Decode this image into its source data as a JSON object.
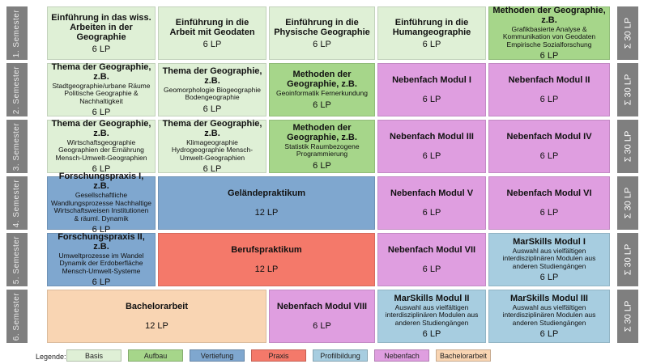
{
  "semesters": [
    "1. Semester",
    "2. Semester",
    "3. Semester",
    "4. Semester",
    "5. Semester",
    "6. Semester"
  ],
  "total_label": "Σ 30 LP",
  "cells": {
    "r1c1": {
      "title": "Einführung in das wiss. Arbeiten in der Geographie",
      "sub": "",
      "lp": "6 LP"
    },
    "r1c2": {
      "title": "Einführung in die Arbeit mit Geodaten",
      "sub": "",
      "lp": "6 LP"
    },
    "r1c3": {
      "title": "Einführung in die Physische Geographie",
      "sub": "",
      "lp": "6 LP"
    },
    "r1c4": {
      "title": "Einführung in die Humangeographie",
      "sub": "",
      "lp": "6 LP"
    },
    "r1c5": {
      "title": "Methoden der Geographie, z.B.",
      "sub": "Grafikbasierte Analyse & Kommunikation von Geodaten Empirische Sozialforschung",
      "lp": "6 LP"
    },
    "r2c1": {
      "title": "Thema der Geographie, z.B.",
      "sub": "Stadtgeographie/urbane Räume Politische Geographie & Nachhaltigkeit",
      "lp": "6 LP"
    },
    "r2c2": {
      "title": "Thema der Geographie, z.B.",
      "sub": "Geomorphologie Biogeographie Bodengeographie",
      "lp": "6 LP"
    },
    "r2c3": {
      "title": "Methoden der Geographie, z.B.",
      "sub": "Geoinformatik Fernerkundung",
      "lp": "6 LP"
    },
    "r2c4": {
      "title": "Nebenfach Modul I",
      "sub": "",
      "lp": "6 LP"
    },
    "r2c5": {
      "title": "Nebenfach Modul II",
      "sub": "",
      "lp": "6 LP"
    },
    "r3c1": {
      "title": "Thema der Geographie, z.B.",
      "sub": "Wirtschaftsgeographie Geographien der Ernährung Mensch-Umwelt-Geographien",
      "lp": "6 LP"
    },
    "r3c2": {
      "title": "Thema der Geographie, z.B.",
      "sub": "Klimageographie Hydrogeographie Mensch-Umwelt-Geographien",
      "lp": "6 LP"
    },
    "r3c3": {
      "title": "Methoden der Geographie, z.B.",
      "sub": "Statistik Raumbezogene Programmierung",
      "lp": "6 LP"
    },
    "r3c4": {
      "title": "Nebenfach Modul III",
      "sub": "",
      "lp": "6 LP"
    },
    "r3c5": {
      "title": "Nebenfach Modul IV",
      "sub": "",
      "lp": "6 LP"
    },
    "r4c1": {
      "title": "Forschungspraxis I, z.B.",
      "sub": "Gesellschaftliche Wandlungsprozesse Nachhaltige Wirtschaftsweisen Institutionen & räuml. Dynamik",
      "lp": "6 LP"
    },
    "r4c2": {
      "title": "Geländepraktikum",
      "sub": "",
      "lp": "12 LP"
    },
    "r4c4": {
      "title": "Nebenfach Modul V",
      "sub": "",
      "lp": "6 LP"
    },
    "r4c5": {
      "title": "Nebenfach Modul VI",
      "sub": "",
      "lp": "6 LP"
    },
    "r5c1": {
      "title": "Forschungspraxis II, z.B.",
      "sub": "Umweltprozesse im Wandel Dynamik der Erdoberfläche Mensch-Umwelt-Systeme",
      "lp": "6 LP"
    },
    "r5c2": {
      "title": "Berufspraktikum",
      "sub": "",
      "lp": "12 LP"
    },
    "r5c4": {
      "title": "Nebenfach Modul VII",
      "sub": "",
      "lp": "6 LP"
    },
    "r5c5": {
      "title": "MarSkills Modul I",
      "sub": "Auswahl aus vielfältigen interdisziplinären Modulen aus anderen Studiengängen",
      "lp": "6 LP"
    },
    "r6c1": {
      "title": "Bachelorarbeit",
      "sub": "",
      "lp": "12 LP"
    },
    "r6c3": {
      "title": "Nebenfach Modul VIII",
      "sub": "",
      "lp": "6 LP"
    },
    "r6c4": {
      "title": "MarSkills Modul II",
      "sub": "Auswahl aus vielfältigen interdisziplinären Modulen aus anderen Studiengängen",
      "lp": "6 LP"
    },
    "r6c5": {
      "title": "MarSkills Modul III",
      "sub": "Auswahl aus vielfältigen interdisziplinären Modulen aus anderen Studiengängen",
      "lp": "6 LP"
    }
  },
  "legend": {
    "label": "Legende:",
    "items": [
      "Basis",
      "Aufbau",
      "Vertiefung",
      "Praxis",
      "Profilbildung",
      "Nebenfach",
      "Bachelorarbeit"
    ]
  },
  "colors": {
    "basis": "#dff0d6",
    "aufbau": "#a6d68a",
    "vertiefung": "#7fa7cf",
    "praxis": "#f4796a",
    "profilbildung": "#a7cde0",
    "nebenfach": "#df9ee0",
    "bachelorarbeit": "#f9d5b3",
    "sidebar": "#7f7f7f"
  }
}
